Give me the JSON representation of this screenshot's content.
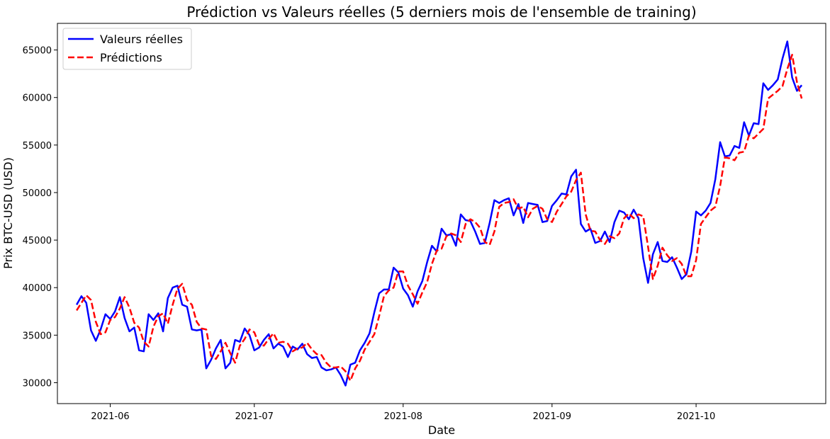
{
  "chart_data": {
    "type": "line",
    "title": "Prédiction vs Valeurs réelles (5 derniers mois de l'ensemble de training)",
    "xlabel": "Date",
    "ylabel": "Prix BTC-USD (USD)",
    "x_start": "2021-05-25",
    "x_step_days": 1,
    "xlim": [
      "2021-05-21",
      "2021-10-28"
    ],
    "ylim": [
      27800,
      67800
    ],
    "x_ticks": [
      "2021-06-01",
      "2021-07-01",
      "2021-08-01",
      "2021-09-01",
      "2021-10-01"
    ],
    "x_tick_labels": [
      "2021-06",
      "2021-07",
      "2021-08",
      "2021-09",
      "2021-10"
    ],
    "y_ticks": [
      30000,
      35000,
      40000,
      45000,
      50000,
      55000,
      60000,
      65000
    ],
    "y_tick_labels": [
      "30000",
      "35000",
      "40000",
      "45000",
      "50000",
      "55000",
      "60000",
      "65000"
    ],
    "grid": false,
    "legend": "top-left",
    "series": [
      {
        "name": "Valeurs réelles",
        "color": "#0000ff",
        "style": "solid",
        "values": [
          38200,
          39100,
          38400,
          35500,
          34400,
          35600,
          37200,
          36700,
          37500,
          39000,
          36800,
          35400,
          35800,
          33400,
          33300,
          37200,
          36600,
          37300,
          35400,
          38900,
          40000,
          40200,
          38200,
          38000,
          35600,
          35500,
          35600,
          31500,
          32400,
          33600,
          34500,
          31500,
          32100,
          34500,
          34300,
          35700,
          35000,
          33400,
          33700,
          34500,
          35100,
          33600,
          34100,
          33800,
          32700,
          33800,
          33500,
          34100,
          33000,
          32600,
          32700,
          31600,
          31300,
          31400,
          31600,
          30800,
          29700,
          31900,
          32100,
          33400,
          34200,
          35200,
          37400,
          39400,
          39800,
          39800,
          42100,
          41600,
          39900,
          39200,
          38000,
          39600,
          40700,
          42700,
          44400,
          43800,
          46200,
          45500,
          45600,
          44400,
          47700,
          47100,
          47000,
          45900,
          44600,
          44700,
          46800,
          49200,
          48900,
          49200,
          49400,
          47600,
          48800,
          46800,
          48900,
          48800,
          48700,
          46900,
          47000,
          48600,
          49200,
          49900,
          49800,
          51700,
          52400,
          46700,
          45900,
          46200,
          44700,
          44900,
          45900,
          44800,
          46900,
          48100,
          47900,
          47200,
          48200,
          47300,
          43100,
          40500,
          43500,
          44800,
          42800,
          42700,
          43200,
          42100,
          40900,
          41400,
          43800,
          48000,
          47600,
          48100,
          48900,
          51400,
          55300,
          53800,
          53900,
          54900,
          54700,
          57400,
          56000,
          57300,
          57200,
          61500,
          60800,
          61300,
          61900,
          64100,
          65900,
          62100,
          60700,
          61300
        ]
      },
      {
        "name": "Prédictions",
        "color": "#ff0000",
        "style": "dashed",
        "values": [
          37600,
          38400,
          39200,
          38700,
          36400,
          35100,
          35300,
          36600,
          36900,
          37800,
          39000,
          37900,
          36300,
          35800,
          34300,
          33800,
          35900,
          37000,
          37300,
          36200,
          38200,
          39900,
          40400,
          38700,
          38200,
          36400,
          35700,
          35600,
          32800,
          32500,
          33300,
          34200,
          33100,
          32100,
          33900,
          34600,
          35600,
          35300,
          34000,
          33900,
          34600,
          35200,
          34200,
          34300,
          34100,
          33300,
          33600,
          33700,
          34200,
          33500,
          33000,
          32900,
          32100,
          31600,
          31600,
          31700,
          31200,
          30200,
          31500,
          32300,
          33500,
          34300,
          35100,
          37000,
          39100,
          39700,
          40000,
          41700,
          41700,
          40200,
          39300,
          38300,
          39500,
          40600,
          42500,
          43900,
          44100,
          45400,
          45700,
          45500,
          44800,
          46700,
          47200,
          46900,
          46300,
          44800,
          44500,
          45900,
          48500,
          48900,
          49000,
          49300,
          48300,
          48500,
          47400,
          48300,
          48600,
          48300,
          47200,
          46900,
          48000,
          48800,
          49600,
          50100,
          51300,
          52100,
          47700,
          46000,
          45900,
          45000,
          44600,
          45400,
          45200,
          45700,
          47300,
          47800,
          47300,
          47700,
          47500,
          44300,
          40900,
          42300,
          44200,
          43400,
          42800,
          43100,
          42500,
          41200,
          41200,
          42900,
          46700,
          47400,
          48100,
          48500,
          50700,
          53700,
          53600,
          53400,
          54200,
          54300,
          56000,
          55700,
          56200,
          56700,
          59900,
          60300,
          60700,
          61200,
          63000,
          64500,
          61600,
          59900
        ]
      }
    ]
  }
}
